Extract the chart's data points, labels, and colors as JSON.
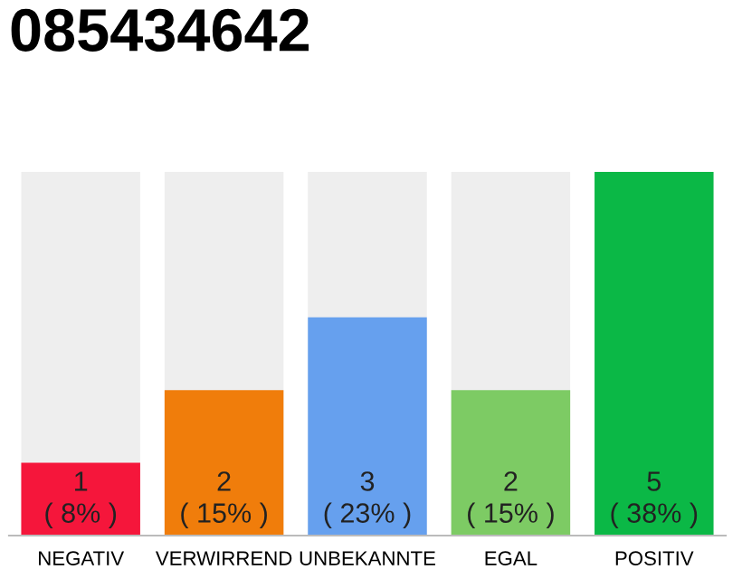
{
  "chart_data": {
    "type": "bar",
    "title": "085434642",
    "categories": [
      "NEGATIV",
      "VERWIRREND",
      "UNBEKANNTE",
      "EGAL",
      "POSITIV"
    ],
    "tick_labels": "x",
    "series": [
      {
        "colors": [
          "#f5163b",
          "#f07d0b",
          "#66a0ee",
          "#7dcb64",
          "#0bb846"
        ],
        "values": [
          1,
          2,
          3,
          2,
          5
        ],
        "value_labels": [
          "1\n( 8% )",
          "2\n( 15% )",
          "3\n( 23% )",
          "2\n( 15% )",
          "5\n( 38% )"
        ]
      }
    ]
  }
}
